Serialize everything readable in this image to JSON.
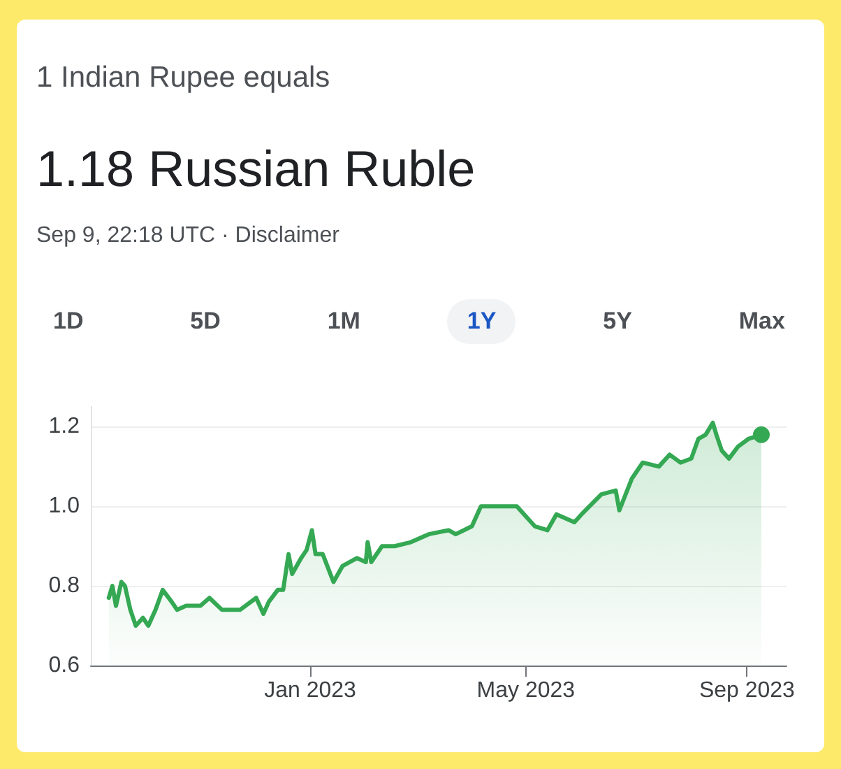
{
  "chart_data": {
    "type": "area",
    "title": "1 Indian Rupee equals",
    "subtitle": "1.18 Russian Ruble",
    "annotations": [
      "Sep 9, 22:18 UTC · Disclaimer",
      "1D",
      "5D",
      "1M",
      "1Y",
      "5Y",
      "Max"
    ],
    "x": [
      "2022-09-11",
      "2022-09-13",
      "2022-09-15",
      "2022-09-18",
      "2022-09-20",
      "2022-09-23",
      "2022-09-26",
      "2022-09-30",
      "2022-10-03",
      "2022-10-07",
      "2022-10-11",
      "2022-10-16",
      "2022-10-19",
      "2022-10-24",
      "2022-11-01",
      "2022-11-06",
      "2022-11-13",
      "2022-11-23",
      "2022-12-02",
      "2022-12-06",
      "2022-12-09",
      "2022-12-14",
      "2022-12-17",
      "2022-12-20",
      "2022-12-22",
      "2022-12-27",
      "2022-12-30",
      "2023-01-02",
      "2023-01-04",
      "2023-01-08",
      "2023-01-14",
      "2023-01-19",
      "2023-01-27",
      "2023-02-01",
      "2023-02-02",
      "2023-02-04",
      "2023-02-10",
      "2023-02-17",
      "2023-02-26",
      "2023-03-08",
      "2023-03-19",
      "2023-03-23",
      "2023-04-01",
      "2023-04-06",
      "2023-04-14",
      "2023-04-19",
      "2023-04-26",
      "2023-04-30",
      "2023-05-06",
      "2023-05-13",
      "2023-05-18",
      "2023-05-28",
      "2023-06-01",
      "2023-06-12",
      "2023-06-20",
      "2023-06-22",
      "2023-06-29",
      "2023-07-05",
      "2023-07-14",
      "2023-07-20",
      "2023-07-26",
      "2023-08-01",
      "2023-08-05",
      "2023-08-09",
      "2023-08-13",
      "2023-08-15",
      "2023-08-18",
      "2023-08-22",
      "2023-08-27",
      "2023-09-02",
      "2023-09-09"
    ],
    "series": [
      {
        "color": "#34a853",
        "values": [
          0.77,
          0.8,
          0.75,
          0.81,
          0.8,
          0.74,
          0.7,
          0.72,
          0.7,
          0.74,
          0.79,
          0.76,
          0.74,
          0.75,
          0.75,
          0.77,
          0.74,
          0.74,
          0.77,
          0.73,
          0.76,
          0.79,
          0.79,
          0.88,
          0.83,
          0.87,
          0.89,
          0.94,
          0.88,
          0.88,
          0.81,
          0.85,
          0.87,
          0.86,
          0.91,
          0.86,
          0.9,
          0.9,
          0.91,
          0.93,
          0.94,
          0.93,
          0.95,
          1.0,
          1.0,
          1.0,
          1.0,
          0.98,
          0.95,
          0.94,
          0.98,
          0.96,
          0.98,
          1.03,
          1.04,
          0.99,
          1.07,
          1.11,
          1.1,
          1.13,
          1.11,
          1.12,
          1.17,
          1.18,
          1.21,
          1.18,
          1.14,
          1.12,
          1.15,
          1.17,
          1.18
        ]
      }
    ],
    "xlim": [
      "2022-09-01",
      "2023-09-23"
    ],
    "xticks": [
      {
        "value": "2023-01-01",
        "label": "Jan 2023"
      },
      {
        "value": "2023-05-01",
        "label": "May 2023"
      },
      {
        "value": "2023-09-01",
        "label": "Sep 2023"
      }
    ],
    "ylim": [
      0.6,
      1.25
    ],
    "yticks": [
      0.6,
      0.8,
      {
        "value": 1,
        "label": "1.0"
      },
      1.2
    ],
    "grid": "y"
  }
}
